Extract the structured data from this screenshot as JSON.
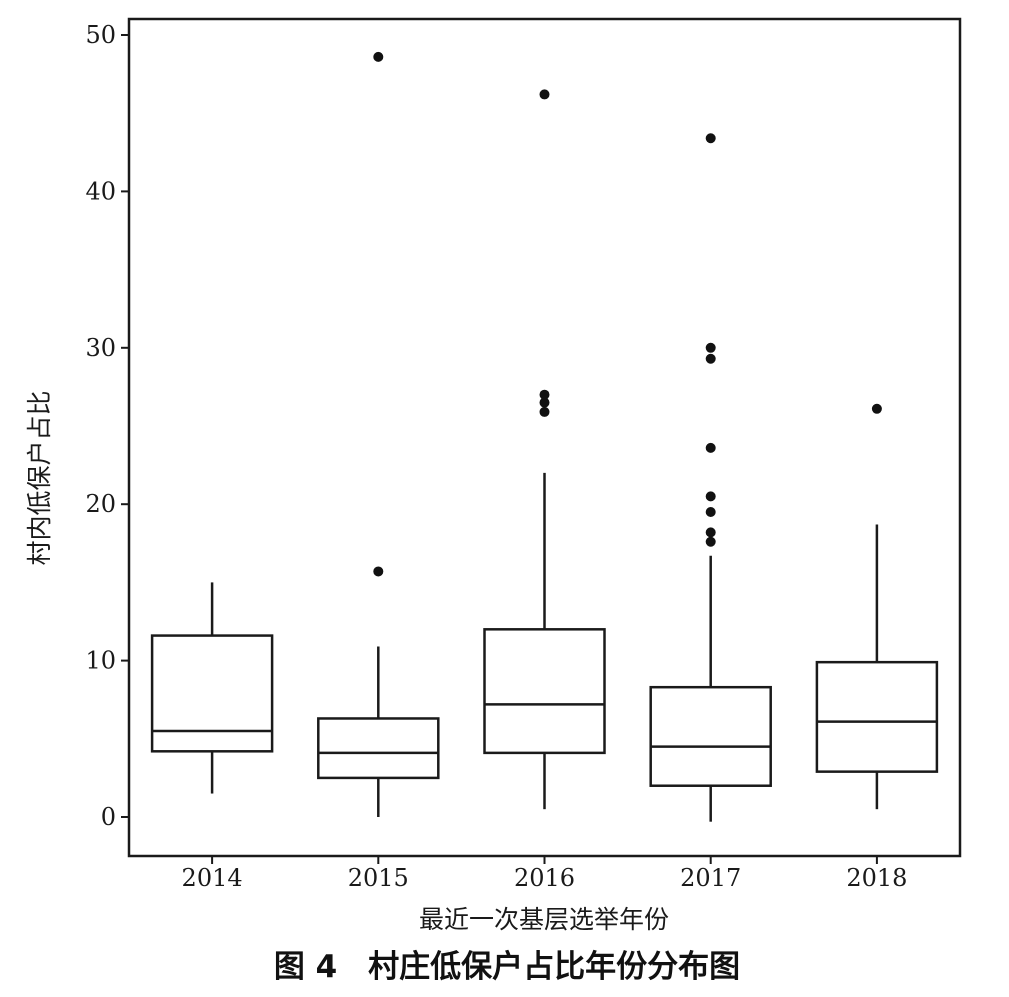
{
  "chart_data": {
    "type": "boxplot",
    "xlabel": "最近一次基层选举年份",
    "ylabel": "村内低保户占比",
    "caption": "图 4　村庄低保户占比年份分布图",
    "categories": [
      "2014",
      "2015",
      "2016",
      "2017",
      "2018"
    ],
    "ylim": [
      -2.5,
      51
    ],
    "yticks": [
      0,
      10,
      20,
      30,
      40,
      50
    ],
    "grid": false,
    "boxes": [
      {
        "category": "2014",
        "whisker_low": 1.5,
        "q1": 4.2,
        "median": 5.5,
        "q3": 11.6,
        "whisker_high": 15.0,
        "outliers": []
      },
      {
        "category": "2015",
        "whisker_low": 0.0,
        "q1": 2.5,
        "median": 4.1,
        "q3": 6.3,
        "whisker_high": 10.9,
        "outliers": [
          15.7,
          48.6
        ]
      },
      {
        "category": "2016",
        "whisker_low": 0.5,
        "q1": 4.1,
        "median": 7.2,
        "q3": 12.0,
        "whisker_high": 22.0,
        "outliers": [
          25.9,
          26.5,
          27.0,
          46.2
        ]
      },
      {
        "category": "2017",
        "whisker_low": -0.3,
        "q1": 2.0,
        "median": 4.5,
        "q3": 8.3,
        "whisker_high": 16.7,
        "outliers": [
          17.6,
          18.2,
          19.5,
          20.5,
          23.6,
          29.3,
          30.0,
          43.4
        ]
      },
      {
        "category": "2018",
        "whisker_low": 0.5,
        "q1": 2.9,
        "median": 6.1,
        "q3": 9.9,
        "whisker_high": 18.7,
        "outliers": [
          26.1
        ]
      }
    ]
  }
}
